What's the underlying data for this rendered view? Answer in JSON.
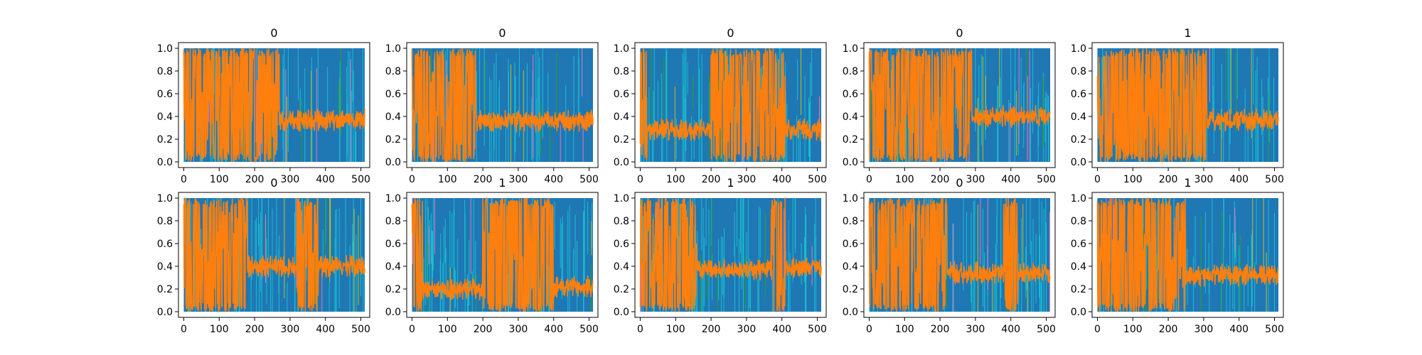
{
  "chart_data": {
    "type": "line",
    "layout": {
      "rows": 2,
      "cols": 5
    },
    "xlim": [
      -15,
      525
    ],
    "ylim": [
      -0.05,
      1.05
    ],
    "xticks": [
      0,
      100,
      200,
      300,
      400,
      500
    ],
    "yticks": [
      0.0,
      0.2,
      0.4,
      0.6,
      0.8,
      1.0
    ],
    "xtick_labels": [
      "0",
      "100",
      "200",
      "300",
      "400",
      "500"
    ],
    "ytick_labels": [
      "0.0",
      "0.2",
      "0.4",
      "0.6",
      "0.8",
      "1.0"
    ],
    "n_points": 512,
    "grid": false,
    "colors": {
      "background_series": "#1f77b4",
      "foreground_series": "#ff7f0e",
      "accent_series": [
        "#17becf",
        "#bcbd22",
        "#2ca02c",
        "#e377c2"
      ]
    },
    "panels": [
      {
        "title": "0",
        "foreground_profile": [
          {
            "from": 0,
            "to": 270,
            "state": "noisy"
          },
          {
            "from": 270,
            "to": 512,
            "state": "band",
            "level": 0.37
          }
        ]
      },
      {
        "title": "0",
        "foreground_profile": [
          {
            "from": 0,
            "to": 180,
            "state": "noisy"
          },
          {
            "from": 180,
            "to": 512,
            "state": "band",
            "level": 0.36
          }
        ]
      },
      {
        "title": "0",
        "foreground_profile": [
          {
            "from": 0,
            "to": 20,
            "state": "noisy"
          },
          {
            "from": 20,
            "to": 200,
            "state": "band",
            "level": 0.28
          },
          {
            "from": 200,
            "to": 410,
            "state": "noisy"
          },
          {
            "from": 410,
            "to": 512,
            "state": "band",
            "level": 0.28
          }
        ]
      },
      {
        "title": "0",
        "foreground_profile": [
          {
            "from": 0,
            "to": 290,
            "state": "noisy"
          },
          {
            "from": 290,
            "to": 512,
            "state": "band",
            "level": 0.4
          }
        ]
      },
      {
        "title": "1",
        "foreground_profile": [
          {
            "from": 0,
            "to": 310,
            "state": "noisy"
          },
          {
            "from": 310,
            "to": 512,
            "state": "band",
            "level": 0.37
          }
        ]
      },
      {
        "title": "0",
        "foreground_profile": [
          {
            "from": 0,
            "to": 180,
            "state": "noisy"
          },
          {
            "from": 180,
            "to": 320,
            "state": "band",
            "level": 0.4
          },
          {
            "from": 320,
            "to": 380,
            "state": "noisy"
          },
          {
            "from": 380,
            "to": 512,
            "state": "band",
            "level": 0.4
          }
        ]
      },
      {
        "title": "1",
        "foreground_profile": [
          {
            "from": 0,
            "to": 30,
            "state": "noisy"
          },
          {
            "from": 30,
            "to": 200,
            "state": "band",
            "level": 0.2
          },
          {
            "from": 200,
            "to": 400,
            "state": "noisy"
          },
          {
            "from": 400,
            "to": 512,
            "state": "band",
            "level": 0.22
          }
        ]
      },
      {
        "title": "1",
        "foreground_profile": [
          {
            "from": 0,
            "to": 160,
            "state": "noisy"
          },
          {
            "from": 160,
            "to": 370,
            "state": "band",
            "level": 0.37
          },
          {
            "from": 370,
            "to": 410,
            "state": "noisy"
          },
          {
            "from": 410,
            "to": 512,
            "state": "band",
            "level": 0.38
          }
        ]
      },
      {
        "title": "0",
        "foreground_profile": [
          {
            "from": 0,
            "to": 220,
            "state": "noisy"
          },
          {
            "from": 220,
            "to": 380,
            "state": "band",
            "level": 0.34
          },
          {
            "from": 380,
            "to": 420,
            "state": "noisy"
          },
          {
            "from": 420,
            "to": 512,
            "state": "band",
            "level": 0.34
          }
        ]
      },
      {
        "title": "1",
        "foreground_profile": [
          {
            "from": 0,
            "to": 250,
            "state": "noisy"
          },
          {
            "from": 250,
            "to": 512,
            "state": "band",
            "level": 0.32
          }
        ]
      }
    ]
  }
}
